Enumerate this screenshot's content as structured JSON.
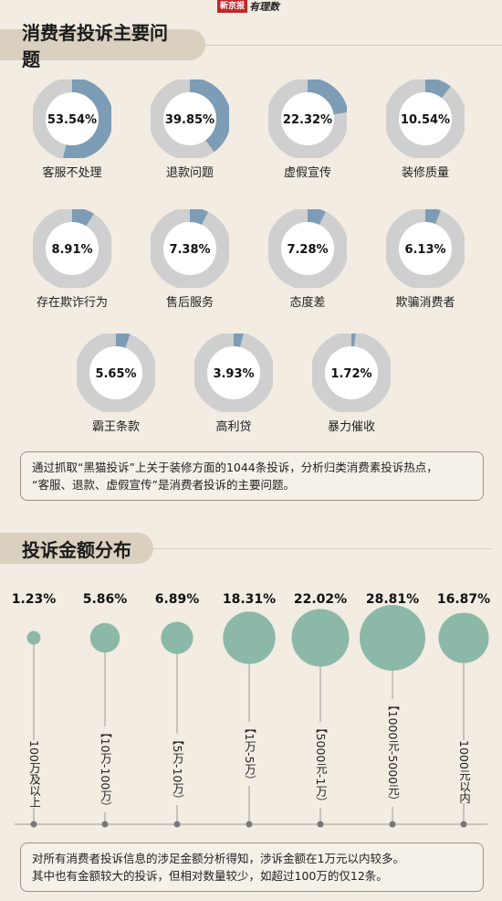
{
  "logo": {
    "brand": "新京报",
    "script": "有理数"
  },
  "section1": {
    "title": "消费者投诉主要问题"
  },
  "colors": {
    "accent_blue": "#7d9cb5",
    "ring_gray": "#cfcfcf",
    "accent_green": "#8cb8a8",
    "stem_gray": "#9a9a9a"
  },
  "chart_data": [
    {
      "type": "pie",
      "categories": [
        "客服不处理",
        "退款问题",
        "虚假宣传",
        "装修质量",
        "存在欺诈行为",
        "售后服务",
        "态度差",
        "欺骗消费者",
        "霸王条款",
        "高利贷",
        "暴力催收"
      ],
      "values": [
        53.54,
        39.85,
        22.32,
        10.54,
        8.91,
        7.38,
        7.28,
        6.13,
        5.65,
        3.93,
        1.72
      ],
      "labels": [
        "53.54%",
        "39.85%",
        "22.32%",
        "10.54%",
        "8.91%",
        "7.38%",
        "7.28%",
        "6.13%",
        "5.65%",
        "3.93%",
        "1.72%"
      ],
      "unit": "%"
    },
    {
      "type": "scatter",
      "categories": [
        "100万及以上",
        "【10万-100万）",
        "【5万-10万）",
        "【1万-5万）",
        "【5000元-1万）",
        "【1000元-5000元）",
        "1000元以内"
      ],
      "values": [
        1.23,
        5.86,
        6.89,
        18.31,
        22.02,
        28.81,
        16.87
      ],
      "labels": [
        "1.23%",
        "5.86%",
        "6.89%",
        "18.31%",
        "22.02%",
        "28.81%",
        "16.87%"
      ],
      "unit": "%"
    }
  ],
  "note1": {
    "line1": "通过抓取“黑猫投诉”上关于装修方面的1044条投诉，分析归类消费素投诉热点，",
    "line2": "“客服、退款、虚假宣传”是消费者投诉的主要问题。"
  },
  "section2": {
    "title": "投诉金额分布"
  },
  "note2": {
    "line1": "对所有消费者投诉信息的涉足金额分析得知，涉诉金额在1万元以内较多。",
    "line2": "其中也有金额较大的投诉，但相对数量较少，如超过100万的仅12条。"
  }
}
